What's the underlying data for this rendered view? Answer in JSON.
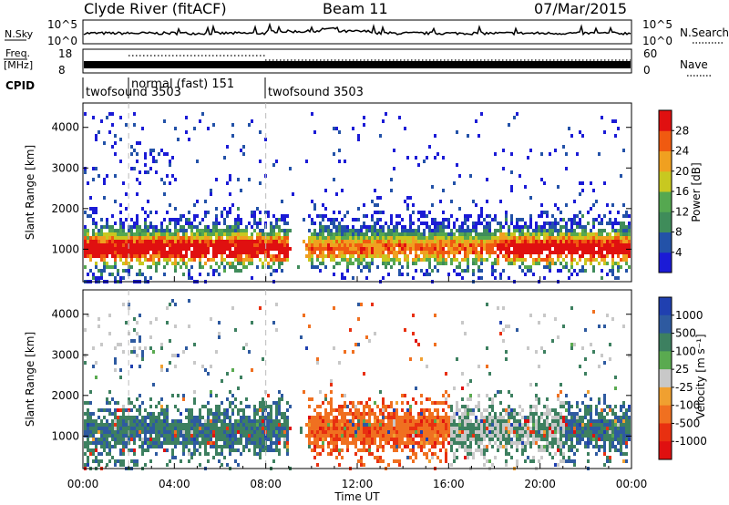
{
  "header": {
    "station": "Clyde River (fitACF)",
    "beam": "Beam 11",
    "date": "07/Mar/2015"
  },
  "strip": {
    "nsky_label": "N.Sky",
    "nsky_ticks": [
      "10^5",
      "10^0"
    ],
    "nsearch_label": "N.Search",
    "nsearch_ticks": [
      "10^5",
      "10^0"
    ],
    "freq_label": "Freq.",
    "freq_unit": "[MHz]",
    "freq_ticks": [
      "18",
      "8"
    ],
    "nave_label": "Nave",
    "nave_ticks": [
      "60",
      "0"
    ],
    "cpid_label": "CPID",
    "cpid_segments": [
      {
        "label": "twofsound 3503",
        "start_hour": 0.0
      },
      {
        "label": "normal (fast) 151",
        "start_hour": 2.0
      },
      {
        "label": "twofsound 3503",
        "start_hour": 8.0
      }
    ]
  },
  "chart_data": [
    {
      "type": "heatmap",
      "name": "power",
      "ylabel": "Slant Range [km]",
      "y_ticks": [
        1000,
        2000,
        3000,
        4000
      ],
      "ylim": [
        200,
        4600
      ],
      "xlim": [
        0,
        24
      ],
      "colorbar_label": "Power [dB]",
      "colorbar_ticks": [
        "4",
        "8",
        "12",
        "16",
        "20",
        "24",
        "28"
      ],
      "colorbar_colors": [
        "#1b1bd6",
        "#2352a8",
        "#3f8c5a",
        "#55a850",
        "#c8c820",
        "#f0a020",
        "#f05a10",
        "#e01010"
      ]
    },
    {
      "type": "heatmap",
      "name": "velocity",
      "ylabel": "Slant Range [km]",
      "y_ticks": [
        1000,
        2000,
        3000,
        4000
      ],
      "ylim": [
        200,
        4600
      ],
      "xlim": [
        0,
        24
      ],
      "xlabel": "Time UT",
      "x_ticks": [
        "00:00",
        "04:00",
        "08:00",
        "12:00",
        "16:00",
        "20:00",
        "00:00"
      ],
      "colorbar_label": "Velocity [m s⁻¹]",
      "colorbar_ticks": [
        "1000",
        "500",
        "100",
        "25",
        "-25",
        "-100",
        "-500",
        "-1000"
      ],
      "colorbar_colors": [
        "#2040b0",
        "#2e5aa0",
        "#3d8060",
        "#5aaa50",
        "#c8c8c8",
        "#f0a030",
        "#f07020",
        "#e83010",
        "#e01010"
      ]
    }
  ]
}
